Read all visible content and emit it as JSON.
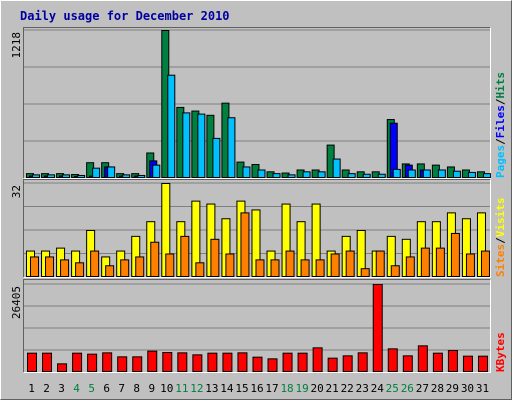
{
  "chart_data": [
    {
      "type": "bar",
      "title": "Daily usage for December 2010",
      "categories": [
        "1",
        "2",
        "3",
        "4",
        "5",
        "6",
        "7",
        "8",
        "9",
        "10",
        "11",
        "12",
        "13",
        "14",
        "15",
        "16",
        "17",
        "18",
        "19",
        "20",
        "21",
        "22",
        "23",
        "24",
        "25",
        "26",
        "27",
        "28",
        "29",
        "30",
        "31"
      ],
      "weekend_days": [
        "4",
        "5",
        "11",
        "12",
        "18",
        "19",
        "25",
        "26"
      ],
      "ytick_label": "1218",
      "ylim": [
        0,
        1218
      ],
      "grid": true,
      "right_labels": [
        "Pages",
        "Files",
        "Hits"
      ],
      "series": [
        {
          "name": "Hits",
          "color": "#008040",
          "values": [
            40,
            40,
            40,
            33,
            130,
            130,
            40,
            40,
            210,
            1218,
            585,
            555,
            520,
            620,
            135,
            115,
            55,
            45,
            70,
            70,
            275,
            70,
            55,
            55,
            485,
            120,
            120,
            110,
            95,
            70,
            55
          ]
        },
        {
          "name": "Files",
          "color": "#0000ff",
          "values": [
            20,
            20,
            20,
            15,
            20,
            95,
            20,
            20,
            145,
            0,
            0,
            0,
            0,
            0,
            0,
            0,
            0,
            0,
            0,
            0,
            0,
            0,
            0,
            0,
            455,
            110,
            70,
            0,
            0,
            0,
            0
          ]
        },
        {
          "name": "Pages",
          "color": "#00c0ff",
          "values": [
            30,
            30,
            30,
            25,
            85,
            95,
            30,
            25,
            110,
            850,
            540,
            530,
            330,
            500,
            95,
            70,
            40,
            30,
            55,
            55,
            160,
            40,
            35,
            35,
            75,
            70,
            70,
            70,
            60,
            50,
            40
          ]
        }
      ]
    },
    {
      "type": "bar",
      "categories": [
        "1",
        "2",
        "3",
        "4",
        "5",
        "6",
        "7",
        "8",
        "9",
        "10",
        "11",
        "12",
        "13",
        "14",
        "15",
        "16",
        "17",
        "18",
        "19",
        "20",
        "21",
        "22",
        "23",
        "24",
        "25",
        "26",
        "27",
        "28",
        "29",
        "30",
        "31"
      ],
      "ytick_label": "32",
      "ylim": [
        0,
        32
      ],
      "grid": true,
      "right_labels": [
        "Sites",
        "Visits"
      ],
      "series": [
        {
          "name": "Visits",
          "color": "#ffff00",
          "values": [
            9,
            9,
            10,
            9,
            16,
            7,
            9,
            14,
            19,
            32,
            19,
            26,
            25,
            20,
            26,
            23,
            9,
            25,
            19,
            25,
            9,
            14,
            16,
            9,
            14,
            13,
            19,
            19,
            22,
            20,
            22
          ]
        },
        {
          "name": "Sites",
          "color": "#ff8000",
          "values": [
            7,
            7,
            6,
            5,
            9,
            4,
            6,
            7,
            12,
            8,
            14,
            5,
            13,
            8,
            22,
            6,
            6,
            9,
            6,
            6,
            8,
            9,
            3,
            9,
            4,
            7,
            10,
            10,
            15,
            8,
            9
          ]
        }
      ]
    },
    {
      "type": "bar",
      "categories": [
        "1",
        "2",
        "3",
        "4",
        "5",
        "6",
        "7",
        "8",
        "9",
        "10",
        "11",
        "12",
        "13",
        "14",
        "15",
        "16",
        "17",
        "18",
        "19",
        "20",
        "21",
        "22",
        "23",
        "24",
        "25",
        "26",
        "27",
        "28",
        "29",
        "30",
        "31"
      ],
      "ytick_label": "26405",
      "ylim": [
        0,
        26405
      ],
      "grid": true,
      "right_labels": [
        "KBytes"
      ],
      "series": [
        {
          "name": "KBytes",
          "color": "#ff0000",
          "values": [
            5800,
            5800,
            2600,
            5800,
            5500,
            5900,
            4700,
            4700,
            6400,
            6000,
            5900,
            5300,
            5800,
            5800,
            5900,
            4600,
            4100,
            5800,
            5800,
            7400,
            4300,
            5000,
            5900,
            26405,
            7100,
            5000,
            8000,
            5800,
            6600,
            4900,
            4900
          ]
        }
      ]
    }
  ]
}
